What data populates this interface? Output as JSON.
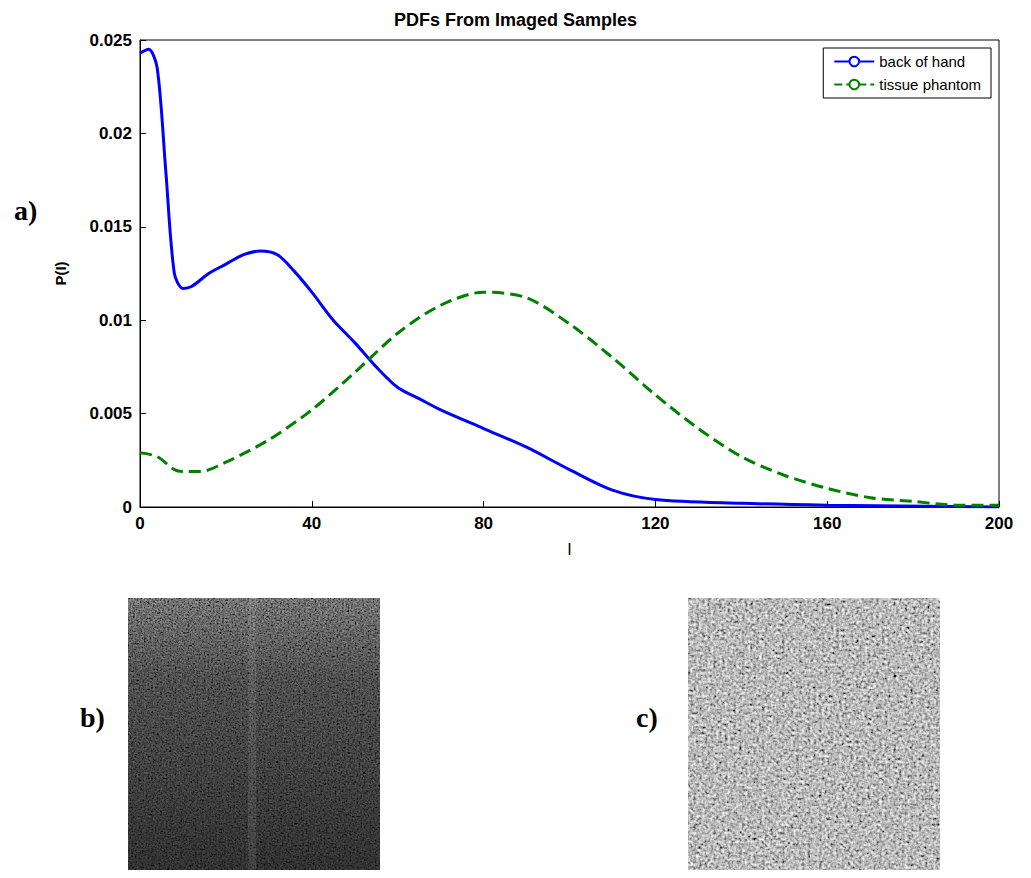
{
  "chart_data": {
    "type": "line",
    "title": "PDFs From Imaged Samples",
    "x_label": "I",
    "y_label": "P(I)",
    "xlim": [
      0,
      200
    ],
    "xticks": [
      0,
      40,
      80,
      120,
      160,
      200
    ],
    "ylim": [
      0,
      0.025
    ],
    "yticks": [
      0,
      0.005,
      0.01,
      0.015,
      0.02,
      0.025
    ],
    "grid": false,
    "legend": "upper right",
    "series": [
      {
        "name": "back of hand",
        "color": "#0000ff",
        "line_style": "solid",
        "x": [
          0,
          2,
          4,
          6,
          8,
          10,
          12,
          16,
          20,
          24,
          28,
          32,
          36,
          40,
          45,
          50,
          55,
          60,
          65,
          70,
          80,
          90,
          100,
          110,
          120,
          140,
          160,
          200
        ],
        "values": [
          0.0243,
          0.0245,
          0.0235,
          0.018,
          0.0125,
          0.0117,
          0.0118,
          0.0125,
          0.013,
          0.0135,
          0.0137,
          0.0135,
          0.0126,
          0.0115,
          0.01,
          0.0088,
          0.0075,
          0.0064,
          0.0058,
          0.0052,
          0.0042,
          0.0032,
          0.002,
          0.0009,
          0.0004,
          0.0002,
          0.0001,
          0.0
        ]
      },
      {
        "name": "tissue phantom",
        "color": "#008000",
        "line_style": "dashed",
        "x": [
          0,
          4,
          8,
          10,
          14,
          20,
          30,
          40,
          50,
          60,
          70,
          80,
          90,
          100,
          110,
          120,
          130,
          140,
          150,
          160,
          170,
          180,
          190,
          200
        ],
        "values": [
          0.0029,
          0.0027,
          0.002,
          0.0019,
          0.0019,
          0.0024,
          0.0036,
          0.0052,
          0.0072,
          0.0093,
          0.0108,
          0.0115,
          0.0112,
          0.0098,
          0.008,
          0.006,
          0.0042,
          0.0027,
          0.0017,
          0.001,
          0.0005,
          0.0003,
          0.0001,
          0.0001
        ]
      }
    ]
  },
  "panel_labels": [
    "a)",
    "b)",
    "c)"
  ]
}
